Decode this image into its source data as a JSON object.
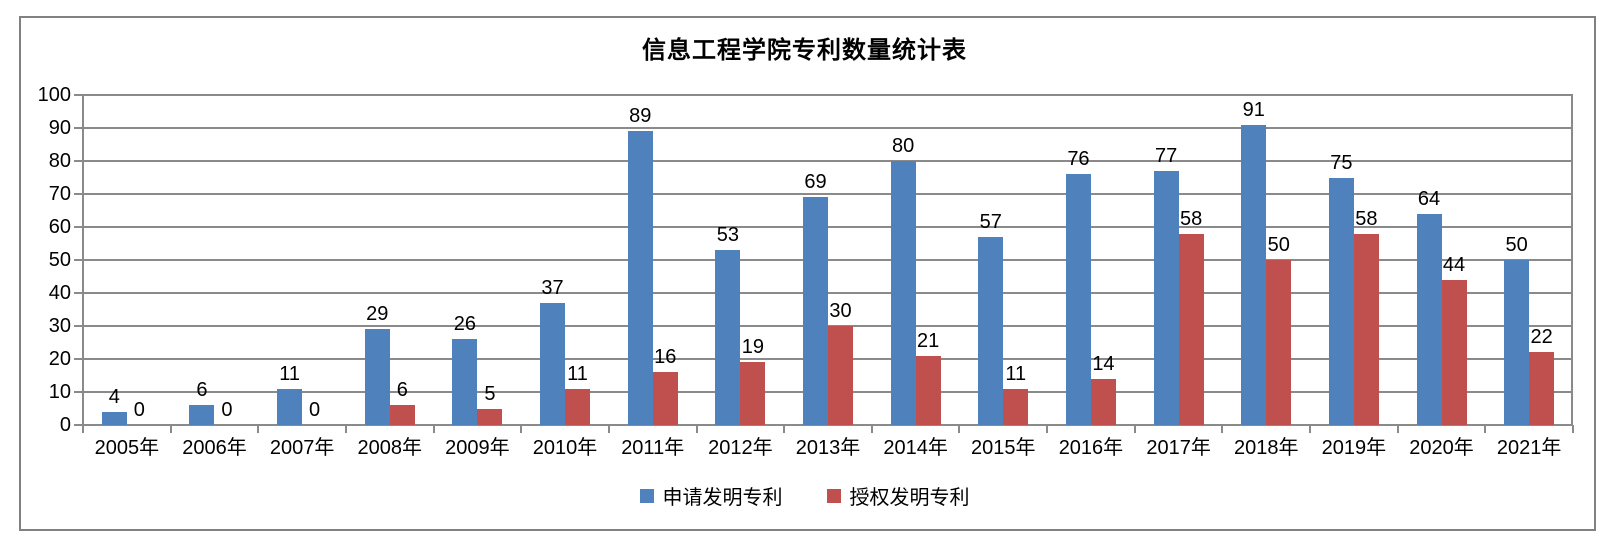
{
  "chart_data": {
    "type": "bar",
    "title": "信息工程学院专利数量统计表",
    "categories": [
      "2005年",
      "2006年",
      "2007年",
      "2008年",
      "2009年",
      "2010年",
      "2011年",
      "2012年",
      "2013年",
      "2014年",
      "2015年",
      "2016年",
      "2017年",
      "2018年",
      "2019年",
      "2020年",
      "2021年"
    ],
    "series": [
      {
        "name": "申请发明专利",
        "color": "#4F81BD",
        "values": [
          4,
          6,
          11,
          29,
          26,
          37,
          89,
          53,
          69,
          80,
          57,
          76,
          77,
          91,
          75,
          64,
          50
        ]
      },
      {
        "name": "授权发明专利",
        "color": "#C0504D",
        "values": [
          0,
          0,
          0,
          6,
          5,
          11,
          16,
          19,
          30,
          21,
          11,
          14,
          58,
          50,
          58,
          44,
          22
        ]
      }
    ],
    "xlabel": "",
    "ylabel": "",
    "ylim": [
      0,
      100
    ],
    "ytick_step": 10,
    "grid": true,
    "data_labels": true,
    "legend_position": "bottom",
    "axis_color": "#8A8A8A",
    "frame_border_color": "#818181"
  }
}
